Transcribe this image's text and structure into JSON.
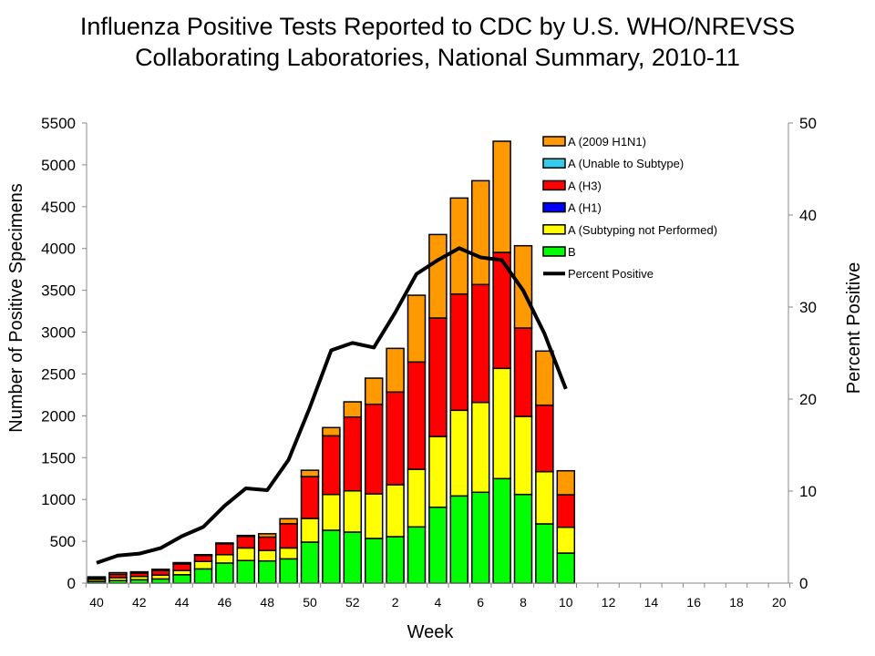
{
  "chart_data": {
    "type": "bar",
    "stacked": true,
    "title": [
      "Influenza Positive Tests Reported to CDC by U.S. WHO/NREVSS",
      "Collaborating Laboratories, National Summary, 2010-11"
    ],
    "xlabel": "Week",
    "ylabel": "Number of Positive Specimens",
    "y2label": "Percent Positive",
    "ylim": [
      0,
      5500
    ],
    "y2lim": [
      0,
      50
    ],
    "yticks": [
      0,
      500,
      1000,
      1500,
      2000,
      2500,
      3000,
      3500,
      4000,
      4500,
      5000,
      5500
    ],
    "y2ticks": [
      0,
      10,
      20,
      30,
      40,
      50
    ],
    "weeks": [
      40,
      41,
      42,
      43,
      44,
      45,
      46,
      47,
      48,
      49,
      50,
      51,
      52,
      1,
      2,
      3,
      4,
      5,
      6,
      7,
      8,
      9,
      10,
      11,
      12,
      13,
      14,
      15,
      16,
      17,
      18,
      19,
      20
    ],
    "xticklabels": [
      40,
      42,
      44,
      46,
      48,
      50,
      52,
      2,
      4,
      6,
      8,
      10,
      12,
      14,
      16,
      18,
      20
    ],
    "categories": [
      40,
      41,
      42,
      43,
      44,
      45,
      46,
      47,
      48,
      49,
      50,
      51,
      52,
      1,
      2,
      3,
      4,
      5,
      6,
      7,
      8,
      9,
      10
    ],
    "series": [
      {
        "name": "B",
        "color": "#00ff00",
        "values": [
          20,
          30,
          40,
          50,
          100,
          170,
          240,
          270,
          265,
          290,
          490,
          632,
          610,
          534,
          555,
          672,
          907,
          1042,
          1086,
          1249,
          1060,
          708,
          359
        ]
      },
      {
        "name": "A (Subtyping not Performed)",
        "color": "#ffff00",
        "values": [
          25,
          35,
          40,
          45,
          50,
          90,
          100,
          150,
          125,
          130,
          283,
          428,
          493,
          533,
          621,
          689,
          846,
          1024,
          1074,
          1318,
          933,
          624,
          309
        ]
      },
      {
        "name": "A (H1)",
        "color": "#0000ff",
        "values": [
          0,
          0,
          0,
          0,
          0,
          0,
          0,
          0,
          0,
          0,
          0,
          0,
          0,
          0,
          0,
          0,
          0,
          0,
          0,
          0,
          0,
          0,
          0
        ]
      },
      {
        "name": "A (H3)",
        "color": "#ff0000",
        "values": [
          15,
          40,
          40,
          55,
          80,
          70,
          130,
          140,
          160,
          290,
          500,
          701,
          882,
          1071,
          1108,
          1282,
          1416,
          1390,
          1409,
          1386,
          1056,
          795,
          388
        ]
      },
      {
        "name": "A (Unable to Subtype)",
        "color": "#33ccee",
        "values": [
          0,
          0,
          0,
          0,
          0,
          0,
          0,
          0,
          0,
          0,
          0,
          0,
          0,
          0,
          0,
          0,
          0,
          0,
          0,
          0,
          0,
          0,
          0
        ]
      },
      {
        "name": "A (2009 H1N1)",
        "color": "#ff9900",
        "values": [
          15,
          20,
          15,
          15,
          15,
          10,
          10,
          10,
          40,
          60,
          76,
          98,
          182,
          312,
          522,
          798,
          998,
          1147,
          1241,
          1329,
          984,
          647,
          287
        ]
      }
    ],
    "line": {
      "name": "Percent Positive",
      "color": "#000000",
      "axis": "right",
      "values": [
        2.2,
        3.0,
        3.2,
        3.8,
        5.1,
        6.1,
        8.4,
        10.3,
        10.1,
        13.4,
        19.1,
        25.3,
        26.1,
        25.6,
        29.4,
        33.6,
        35.1,
        36.4,
        35.4,
        35.1,
        31.8,
        27.1,
        21.1
      ]
    },
    "legend_order": [
      "A (2009 H1N1)",
      "A (Unable to Subtype)",
      "A (H3)",
      "A (H1)",
      "A (Subtyping not Performed)",
      "B",
      "Percent Positive"
    ],
    "legend_placement": "top-right",
    "grid": false
  }
}
